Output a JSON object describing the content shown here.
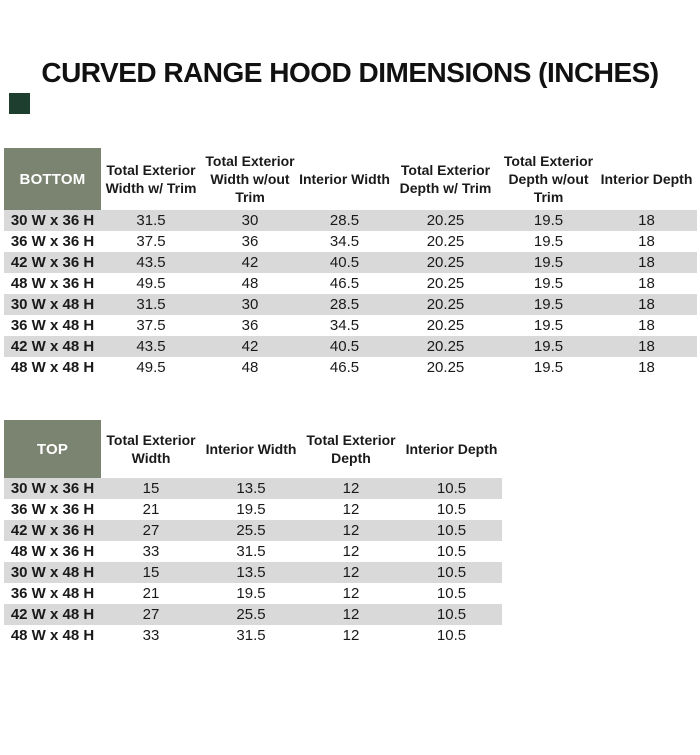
{
  "page": {
    "title": "CURVED RANGE HOOD DIMENSIONS (INCHES)"
  },
  "colors": {
    "header_green": "#7a8470",
    "stripe_gray": "#d9d9d9",
    "corner_square": "#1e3e30",
    "text": "#1a1a1a",
    "header_label_text": "#ffffff"
  },
  "chart_data": [
    {
      "type": "table",
      "corner_label": "BOTTOM",
      "columns": [
        "Total Exterior Width w/ Trim",
        "Total Exterior Width w/out Trim",
        "Interior Width",
        "Total Exterior Depth w/ Trim",
        "Total Exterior Depth w/out Trim",
        "Interior Depth"
      ],
      "rows": [
        [
          "30 W x 36 H",
          "31.5",
          "30",
          "28.5",
          "20.25",
          "19.5",
          "18"
        ],
        [
          "36 W x 36 H",
          "37.5",
          "36",
          "34.5",
          "20.25",
          "19.5",
          "18"
        ],
        [
          "42 W x 36 H",
          "43.5",
          "42",
          "40.5",
          "20.25",
          "19.5",
          "18"
        ],
        [
          "48 W x 36 H",
          "49.5",
          "48",
          "46.5",
          "20.25",
          "19.5",
          "18"
        ],
        [
          "30 W x 48 H",
          "31.5",
          "30",
          "28.5",
          "20.25",
          "19.5",
          "18"
        ],
        [
          "36 W x 48 H",
          "37.5",
          "36",
          "34.5",
          "20.25",
          "19.5",
          "18"
        ],
        [
          "42 W x 48 H",
          "43.5",
          "42",
          "40.5",
          "20.25",
          "19.5",
          "18"
        ],
        [
          "48 W x 48 H",
          "49.5",
          "48",
          "46.5",
          "20.25",
          "19.5",
          "18"
        ]
      ]
    },
    {
      "type": "table",
      "corner_label": "TOP",
      "columns": [
        "Total Exterior Width",
        "Interior Width",
        "Total Exterior Depth",
        "Interior Depth"
      ],
      "rows": [
        [
          "30 W x 36 H",
          "15",
          "13.5",
          "12",
          "10.5"
        ],
        [
          "36 W x 36 H",
          "21",
          "19.5",
          "12",
          "10.5"
        ],
        [
          "42 W x 36 H",
          "27",
          "25.5",
          "12",
          "10.5"
        ],
        [
          "48 W x 36 H",
          "33",
          "31.5",
          "12",
          "10.5"
        ],
        [
          "30 W x 48 H",
          "15",
          "13.5",
          "12",
          "10.5"
        ],
        [
          "36 W x 48 H",
          "21",
          "19.5",
          "12",
          "10.5"
        ],
        [
          "42 W x 48 H",
          "27",
          "25.5",
          "12",
          "10.5"
        ],
        [
          "48 W x 48 H",
          "33",
          "31.5",
          "12",
          "10.5"
        ]
      ]
    }
  ]
}
